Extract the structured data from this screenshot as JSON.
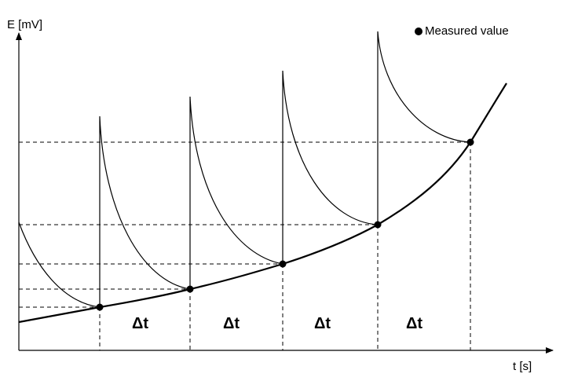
{
  "axes": {
    "y_label": "E [mV]",
    "x_label": "t [s]"
  },
  "legend": {
    "marker_label": "Measured value"
  },
  "intervals": {
    "label": "Δt",
    "count": 4
  },
  "colors": {
    "line": "#000000",
    "background": "#ffffff"
  }
}
